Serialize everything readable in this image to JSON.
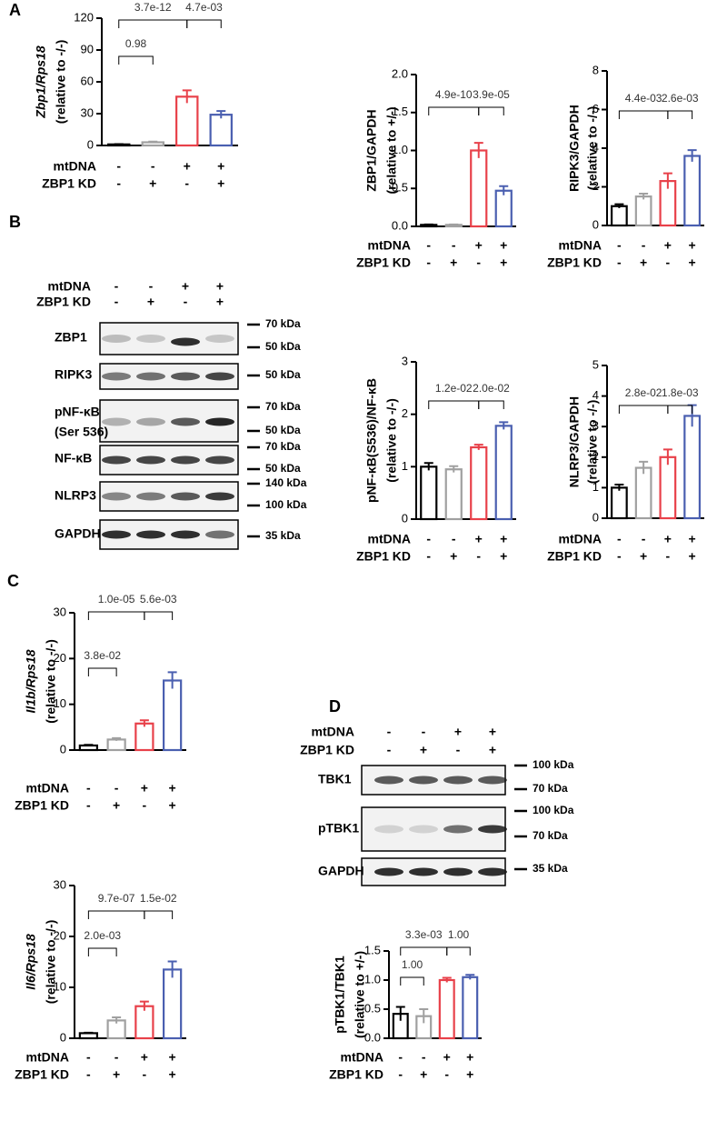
{
  "panels": [
    "A",
    "B",
    "C",
    "D"
  ],
  "chart_data": [
    {
      "type": "bar",
      "ylabel": [
        "Zbp1/Rps18",
        "(relative to -/-)"
      ],
      "ylabel_italic": true,
      "ylim": [
        0,
        120
      ],
      "yticks": [
        0,
        30,
        60,
        90,
        120
      ],
      "values": [
        1,
        3,
        46,
        29
      ],
      "errors": [
        0.3,
        0.6,
        6,
        3.5
      ],
      "colors": [
        "#000000",
        "#a0a0a0",
        "#e8414a",
        "#4a5fb0"
      ],
      "conditions": [
        {
          "name": "mtDNA",
          "values": [
            "-",
            "-",
            "+",
            "+"
          ]
        },
        {
          "name": "ZBP1 KD",
          "values": [
            "-",
            "+",
            "-",
            "+"
          ]
        }
      ],
      "comparisons": [
        {
          "groups": [
            0,
            1
          ],
          "label": "0.98"
        },
        {
          "groups": [
            0,
            2
          ],
          "label": "3.7e-12"
        },
        {
          "groups": [
            2,
            3
          ],
          "label": "4.7e-03"
        }
      ]
    },
    {
      "type": "bar",
      "ylabel": [
        "ZBP1/GAPDH",
        "(relative to +/-)"
      ],
      "ylabel_italic": false,
      "ylim": [
        0,
        2
      ],
      "yticks": [
        {
          "value": 0,
          "label": "0.0"
        },
        {
          "value": 0.5,
          "label": "0.5"
        },
        {
          "value": 1,
          "label": "1.0"
        },
        {
          "value": 1.5,
          "label": "1.5"
        },
        {
          "value": 2,
          "label": "2.0"
        }
      ],
      "values": [
        0.02,
        0.02,
        1.0,
        0.47
      ],
      "errors": [
        0.005,
        0.005,
        0.1,
        0.06
      ],
      "colors": [
        "#000000",
        "#a0a0a0",
        "#e8414a",
        "#4a5fb0"
      ],
      "conditions": [
        {
          "name": "mtDNA",
          "values": [
            "-",
            "-",
            "+",
            "+"
          ]
        },
        {
          "name": "ZBP1 KD",
          "values": [
            "-",
            "+",
            "-",
            "+"
          ]
        }
      ],
      "comparisons": [
        {
          "groups": [
            0,
            2
          ],
          "label": "4.9e-10"
        },
        {
          "groups": [
            2,
            3
          ],
          "label": "3.9e-05"
        }
      ]
    },
    {
      "type": "bar",
      "ylabel": [
        "RIPK3/GAPDH",
        "(relative to -/-)"
      ],
      "ylabel_italic": false,
      "ylim": [
        0,
        8
      ],
      "yticks": [
        0,
        2,
        4,
        6,
        8
      ],
      "values": [
        1.0,
        1.5,
        2.3,
        3.6
      ],
      "errors": [
        0.1,
        0.15,
        0.4,
        0.3
      ],
      "colors": [
        "#000000",
        "#a0a0a0",
        "#e8414a",
        "#4a5fb0"
      ],
      "conditions": [
        {
          "name": "mtDNA",
          "values": [
            "-",
            "-",
            "+",
            "+"
          ]
        },
        {
          "name": "ZBP1 KD",
          "values": [
            "-",
            "+",
            "-",
            "+"
          ]
        }
      ],
      "comparisons": [
        {
          "groups": [
            0,
            2
          ],
          "label": "4.4e-03"
        },
        {
          "groups": [
            2,
            3
          ],
          "label": "2.6e-03"
        }
      ]
    },
    {
      "type": "bar",
      "ylabel": [
        "pNF-κB(S536)/NF-κB",
        "(relative to -/-)"
      ],
      "ylabel_italic": false,
      "ylim": [
        0,
        3
      ],
      "yticks": [
        0,
        1,
        2,
        3
      ],
      "values": [
        1.0,
        0.95,
        1.37,
        1.78
      ],
      "errors": [
        0.07,
        0.06,
        0.05,
        0.07
      ],
      "colors": [
        "#000000",
        "#a0a0a0",
        "#e8414a",
        "#4a5fb0"
      ],
      "conditions": [
        {
          "name": "mtDNA",
          "values": [
            "-",
            "-",
            "+",
            "+"
          ]
        },
        {
          "name": "ZBP1 KD",
          "values": [
            "-",
            "+",
            "-",
            "+"
          ]
        }
      ],
      "comparisons": [
        {
          "groups": [
            0,
            2
          ],
          "label": "1.2e-02"
        },
        {
          "groups": [
            2,
            3
          ],
          "label": "2.0e-02"
        }
      ]
    },
    {
      "type": "bar",
      "ylabel": [
        "NLRP3/GAPDH",
        "(relative to -/-)"
      ],
      "ylabel_italic": false,
      "ylim": [
        0,
        5
      ],
      "yticks": [
        0,
        1,
        2,
        3,
        4,
        5
      ],
      "values": [
        1.0,
        1.65,
        2.0,
        3.35
      ],
      "errors": [
        0.1,
        0.2,
        0.25,
        0.35
      ],
      "colors": [
        "#000000",
        "#a0a0a0",
        "#e8414a",
        "#4a5fb0"
      ],
      "conditions": [
        {
          "name": "mtDNA",
          "values": [
            "-",
            "-",
            "+",
            "+"
          ]
        },
        {
          "name": "ZBP1 KD",
          "values": [
            "-",
            "+",
            "-",
            "+"
          ]
        }
      ],
      "comparisons": [
        {
          "groups": [
            0,
            2
          ],
          "label": "2.8e-02"
        },
        {
          "groups": [
            2,
            3
          ],
          "label": "1.8e-03"
        }
      ]
    },
    {
      "type": "bar",
      "ylabel": [
        "Il1b/Rps18",
        "(relative to -/-)"
      ],
      "ylabel_italic": true,
      "ylim": [
        0,
        30
      ],
      "yticks": [
        0,
        10,
        20,
        30
      ],
      "values": [
        1,
        2.3,
        5.8,
        15.2
      ],
      "errors": [
        0.15,
        0.3,
        0.7,
        1.8
      ],
      "colors": [
        "#000000",
        "#a0a0a0",
        "#e8414a",
        "#4a5fb0"
      ],
      "conditions": [
        {
          "name": "mtDNA",
          "values": [
            "-",
            "-",
            "+",
            "+"
          ]
        },
        {
          "name": "ZBP1 KD",
          "values": [
            "-",
            "+",
            "-",
            "+"
          ]
        }
      ],
      "comparisons": [
        {
          "groups": [
            0,
            1
          ],
          "label": "3.8e-02"
        },
        {
          "groups": [
            0,
            2
          ],
          "label": "1.0e-05"
        },
        {
          "groups": [
            2,
            3
          ],
          "label": "5.6e-03"
        }
      ]
    },
    {
      "type": "bar",
      "ylabel": [
        "Il6/Rps18",
        "(relative to -/-)"
      ],
      "ylabel_italic": true,
      "ylim": [
        0,
        30
      ],
      "yticks": [
        0,
        10,
        20,
        30
      ],
      "values": [
        1,
        3.5,
        6.3,
        13.5
      ],
      "errors": [
        0.1,
        0.6,
        0.9,
        1.6
      ],
      "colors": [
        "#000000",
        "#a0a0a0",
        "#e8414a",
        "#4a5fb0"
      ],
      "conditions": [
        {
          "name": "mtDNA",
          "values": [
            "-",
            "-",
            "+",
            "+"
          ]
        },
        {
          "name": "ZBP1 KD",
          "values": [
            "-",
            "+",
            "-",
            "+"
          ]
        }
      ],
      "comparisons": [
        {
          "groups": [
            0,
            1
          ],
          "label": "2.0e-03"
        },
        {
          "groups": [
            0,
            2
          ],
          "label": "9.7e-07"
        },
        {
          "groups": [
            2,
            3
          ],
          "label": "1.5e-02"
        }
      ]
    },
    {
      "type": "bar",
      "ylabel": [
        "pTBK1/TBK1",
        "(relative to +/-)"
      ],
      "ylabel_italic": false,
      "ylim": [
        0,
        1.5
      ],
      "yticks": [
        {
          "value": 0,
          "label": "0.0"
        },
        {
          "value": 0.5,
          "label": "0.5"
        },
        {
          "value": 1,
          "label": "1.0"
        },
        {
          "value": 1.5,
          "label": "1.5"
        }
      ],
      "values": [
        0.42,
        0.38,
        1.0,
        1.05
      ],
      "errors": [
        0.12,
        0.12,
        0.04,
        0.04
      ],
      "colors": [
        "#000000",
        "#a0a0a0",
        "#e8414a",
        "#4a5fb0"
      ],
      "conditions": [
        {
          "name": "mtDNA",
          "values": [
            "-",
            "-",
            "+",
            "+"
          ]
        },
        {
          "name": "ZBP1 KD",
          "values": [
            "-",
            "+",
            "-",
            "+"
          ]
        }
      ],
      "comparisons": [
        {
          "groups": [
            0,
            1
          ],
          "label": "1.00"
        },
        {
          "groups": [
            0,
            2
          ],
          "label": "3.3e-03"
        },
        {
          "groups": [
            2,
            3
          ],
          "label": "1.00"
        }
      ]
    }
  ],
  "blots": [
    {
      "conditions": [
        {
          "name": "mtDNA",
          "values": [
            "-",
            "-",
            "+",
            "+"
          ]
        },
        {
          "name": "ZBP1 KD",
          "values": [
            "-",
            "+",
            "-",
            "+"
          ]
        }
      ],
      "rows": [
        {
          "label": [
            "ZBP1"
          ],
          "markers": [
            "70 kDa",
            "50 kDa"
          ]
        },
        {
          "label": [
            "RIPK3"
          ],
          "markers": [
            "50 kDa"
          ]
        },
        {
          "label": [
            "pNF-κB",
            "(Ser 536)"
          ],
          "markers": [
            "70 kDa",
            "50 kDa"
          ]
        },
        {
          "label": [
            "NF-κB"
          ],
          "markers": [
            "70 kDa",
            "50 kDa"
          ]
        },
        {
          "label": [
            "NLRP3"
          ],
          "markers": [
            "140 kDa",
            "100 kDa"
          ]
        },
        {
          "label": [
            "GAPDH"
          ],
          "markers": [
            "35 kDa"
          ]
        }
      ]
    },
    {
      "conditions": [
        {
          "name": "mtDNA",
          "values": [
            "-",
            "-",
            "+",
            "+"
          ]
        },
        {
          "name": "ZBP1 KD",
          "values": [
            "-",
            "+",
            "-",
            "+"
          ]
        }
      ],
      "rows": [
        {
          "label": [
            "TBK1"
          ],
          "markers": [
            "100 kDa",
            "70 kDa"
          ]
        },
        {
          "label": [
            "pTBK1"
          ],
          "markers": [
            "100 kDa",
            "70 kDa"
          ]
        },
        {
          "label": [
            "GAPDH"
          ],
          "markers": [
            "35 kDa"
          ]
        }
      ]
    }
  ]
}
